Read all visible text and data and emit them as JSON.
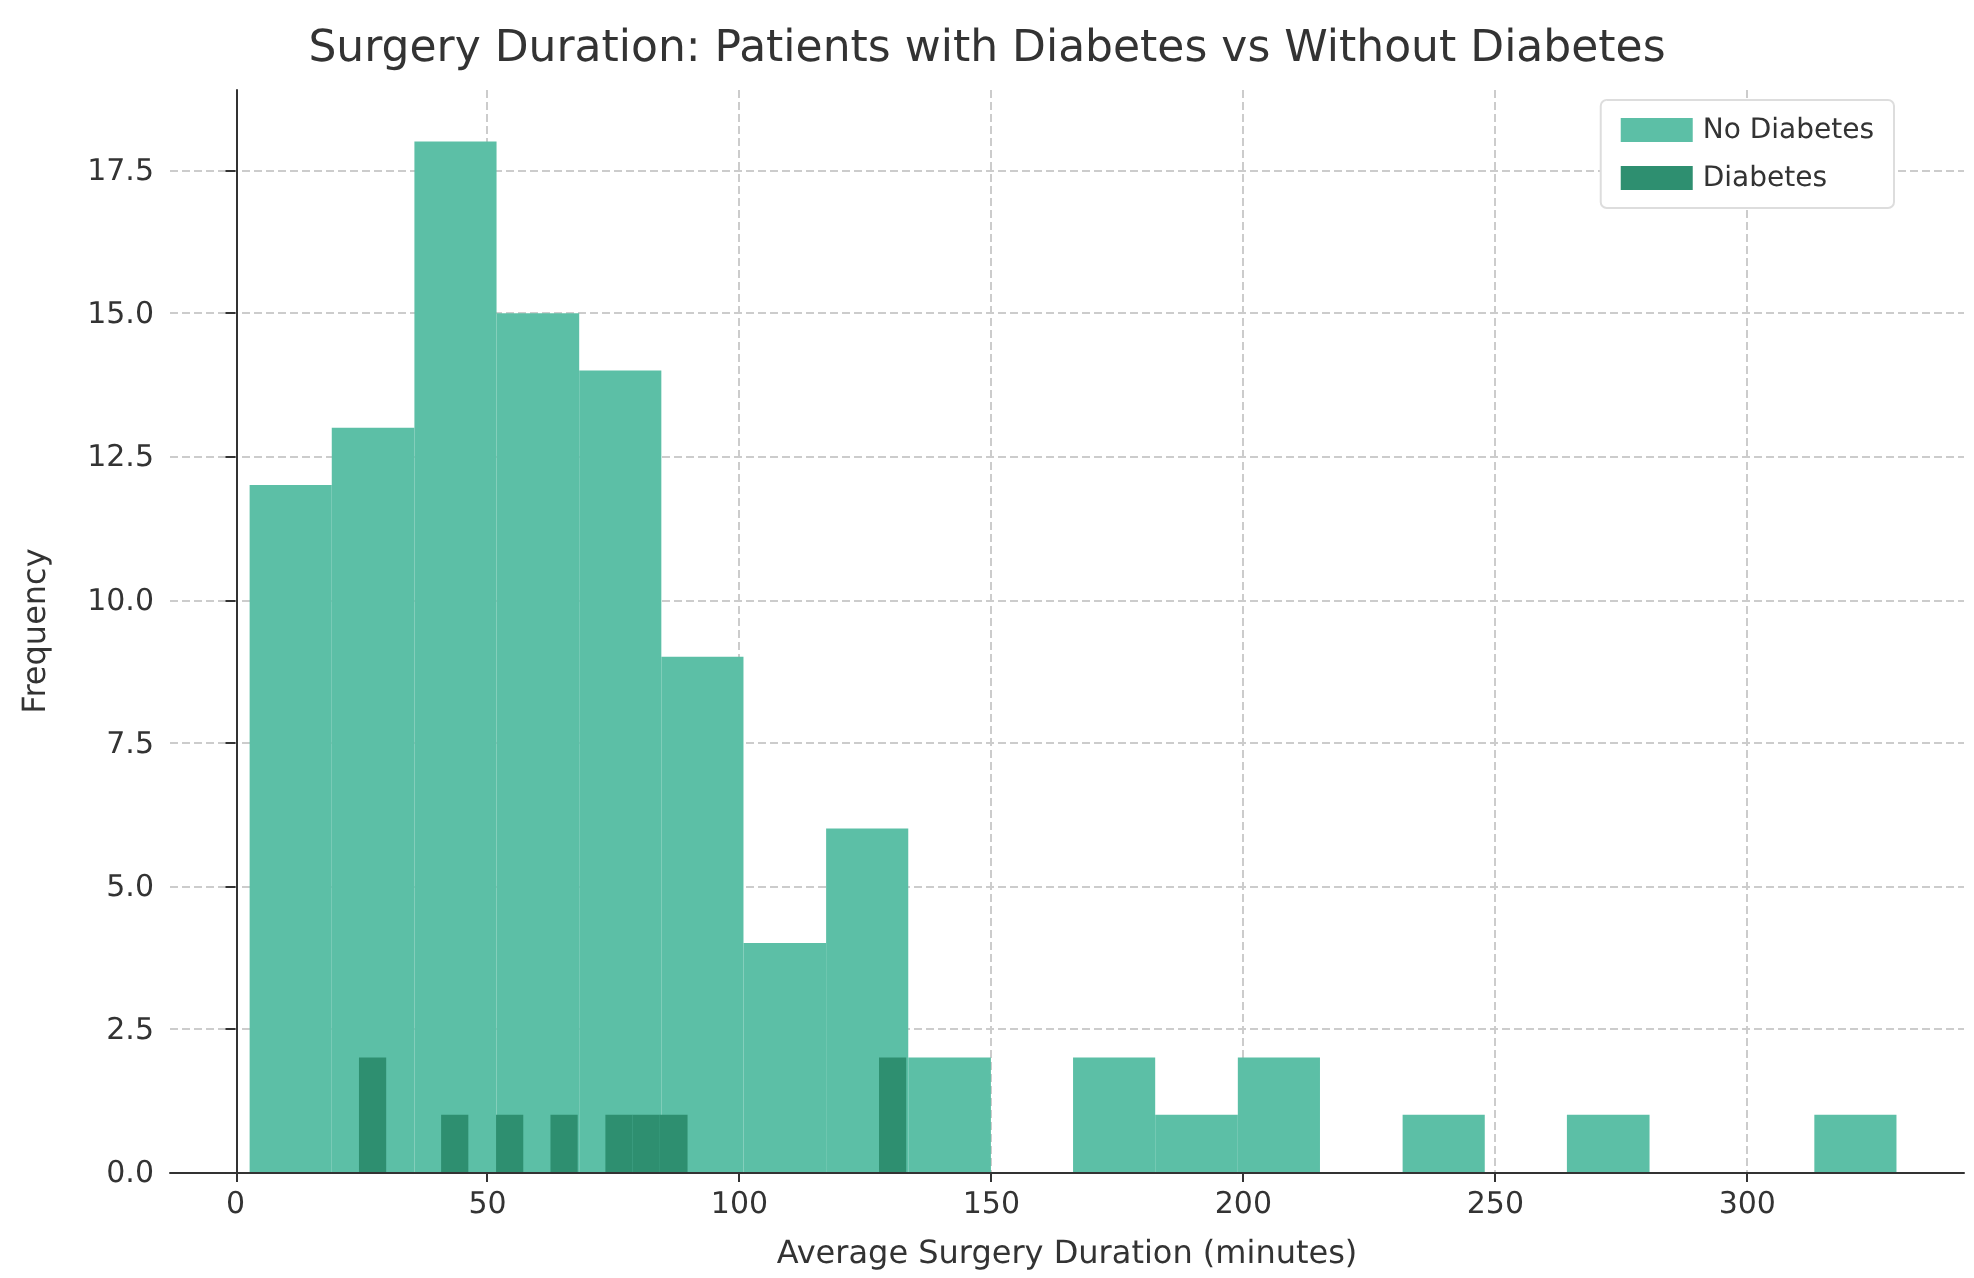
{
  "chart_data": {
    "type": "histogram",
    "title": "Surgery Duration: Patients with Diabetes vs Without Diabetes",
    "xlabel": "Average Surgery Duration (minutes)",
    "ylabel": "Frequency",
    "bins": [
      2.8,
      19.1,
      35.5,
      51.8,
      68.2,
      84.5,
      100.8,
      117.2,
      133.5,
      149.9,
      166.2,
      182.5,
      198.9,
      215.2,
      231.6,
      247.9,
      264.2,
      280.6,
      313.3,
      329.6
    ],
    "series": [
      {
        "name": "No Diabetes",
        "color": "#5cbfa6",
        "values": [
          12,
          13,
          18,
          15,
          14,
          9,
          4,
          6,
          2,
          0,
          2,
          1,
          2,
          0,
          1,
          0,
          1,
          0,
          1
        ]
      },
      {
        "name": "Diabetes",
        "color": "#2e8f70",
        "bins": [
          24.5,
          29.9,
          40.8,
          46.2,
          51.7,
          57.1,
          62.5,
          67.9,
          73.4,
          78.8,
          84.2,
          89.7,
          127.7,
          133.1
        ],
        "values": [
          2,
          0,
          1,
          0,
          1,
          0,
          1,
          0,
          1,
          1,
          1,
          0,
          2
        ]
      }
    ],
    "xlim": [
      -13,
      343
    ],
    "xticks": [
      0,
      50,
      100,
      150,
      200,
      250,
      300
    ],
    "ylim": [
      0,
      18.9
    ],
    "yticks": [
      {
        "value": 0,
        "label": "0.0"
      },
      2.5,
      {
        "value": 5,
        "label": "5.0"
      },
      7.5,
      {
        "value": 10,
        "label": "10.0"
      },
      12.5,
      {
        "value": 15,
        "label": "15.0"
      },
      17.5
    ],
    "grid": true,
    "legend": "top right"
  }
}
